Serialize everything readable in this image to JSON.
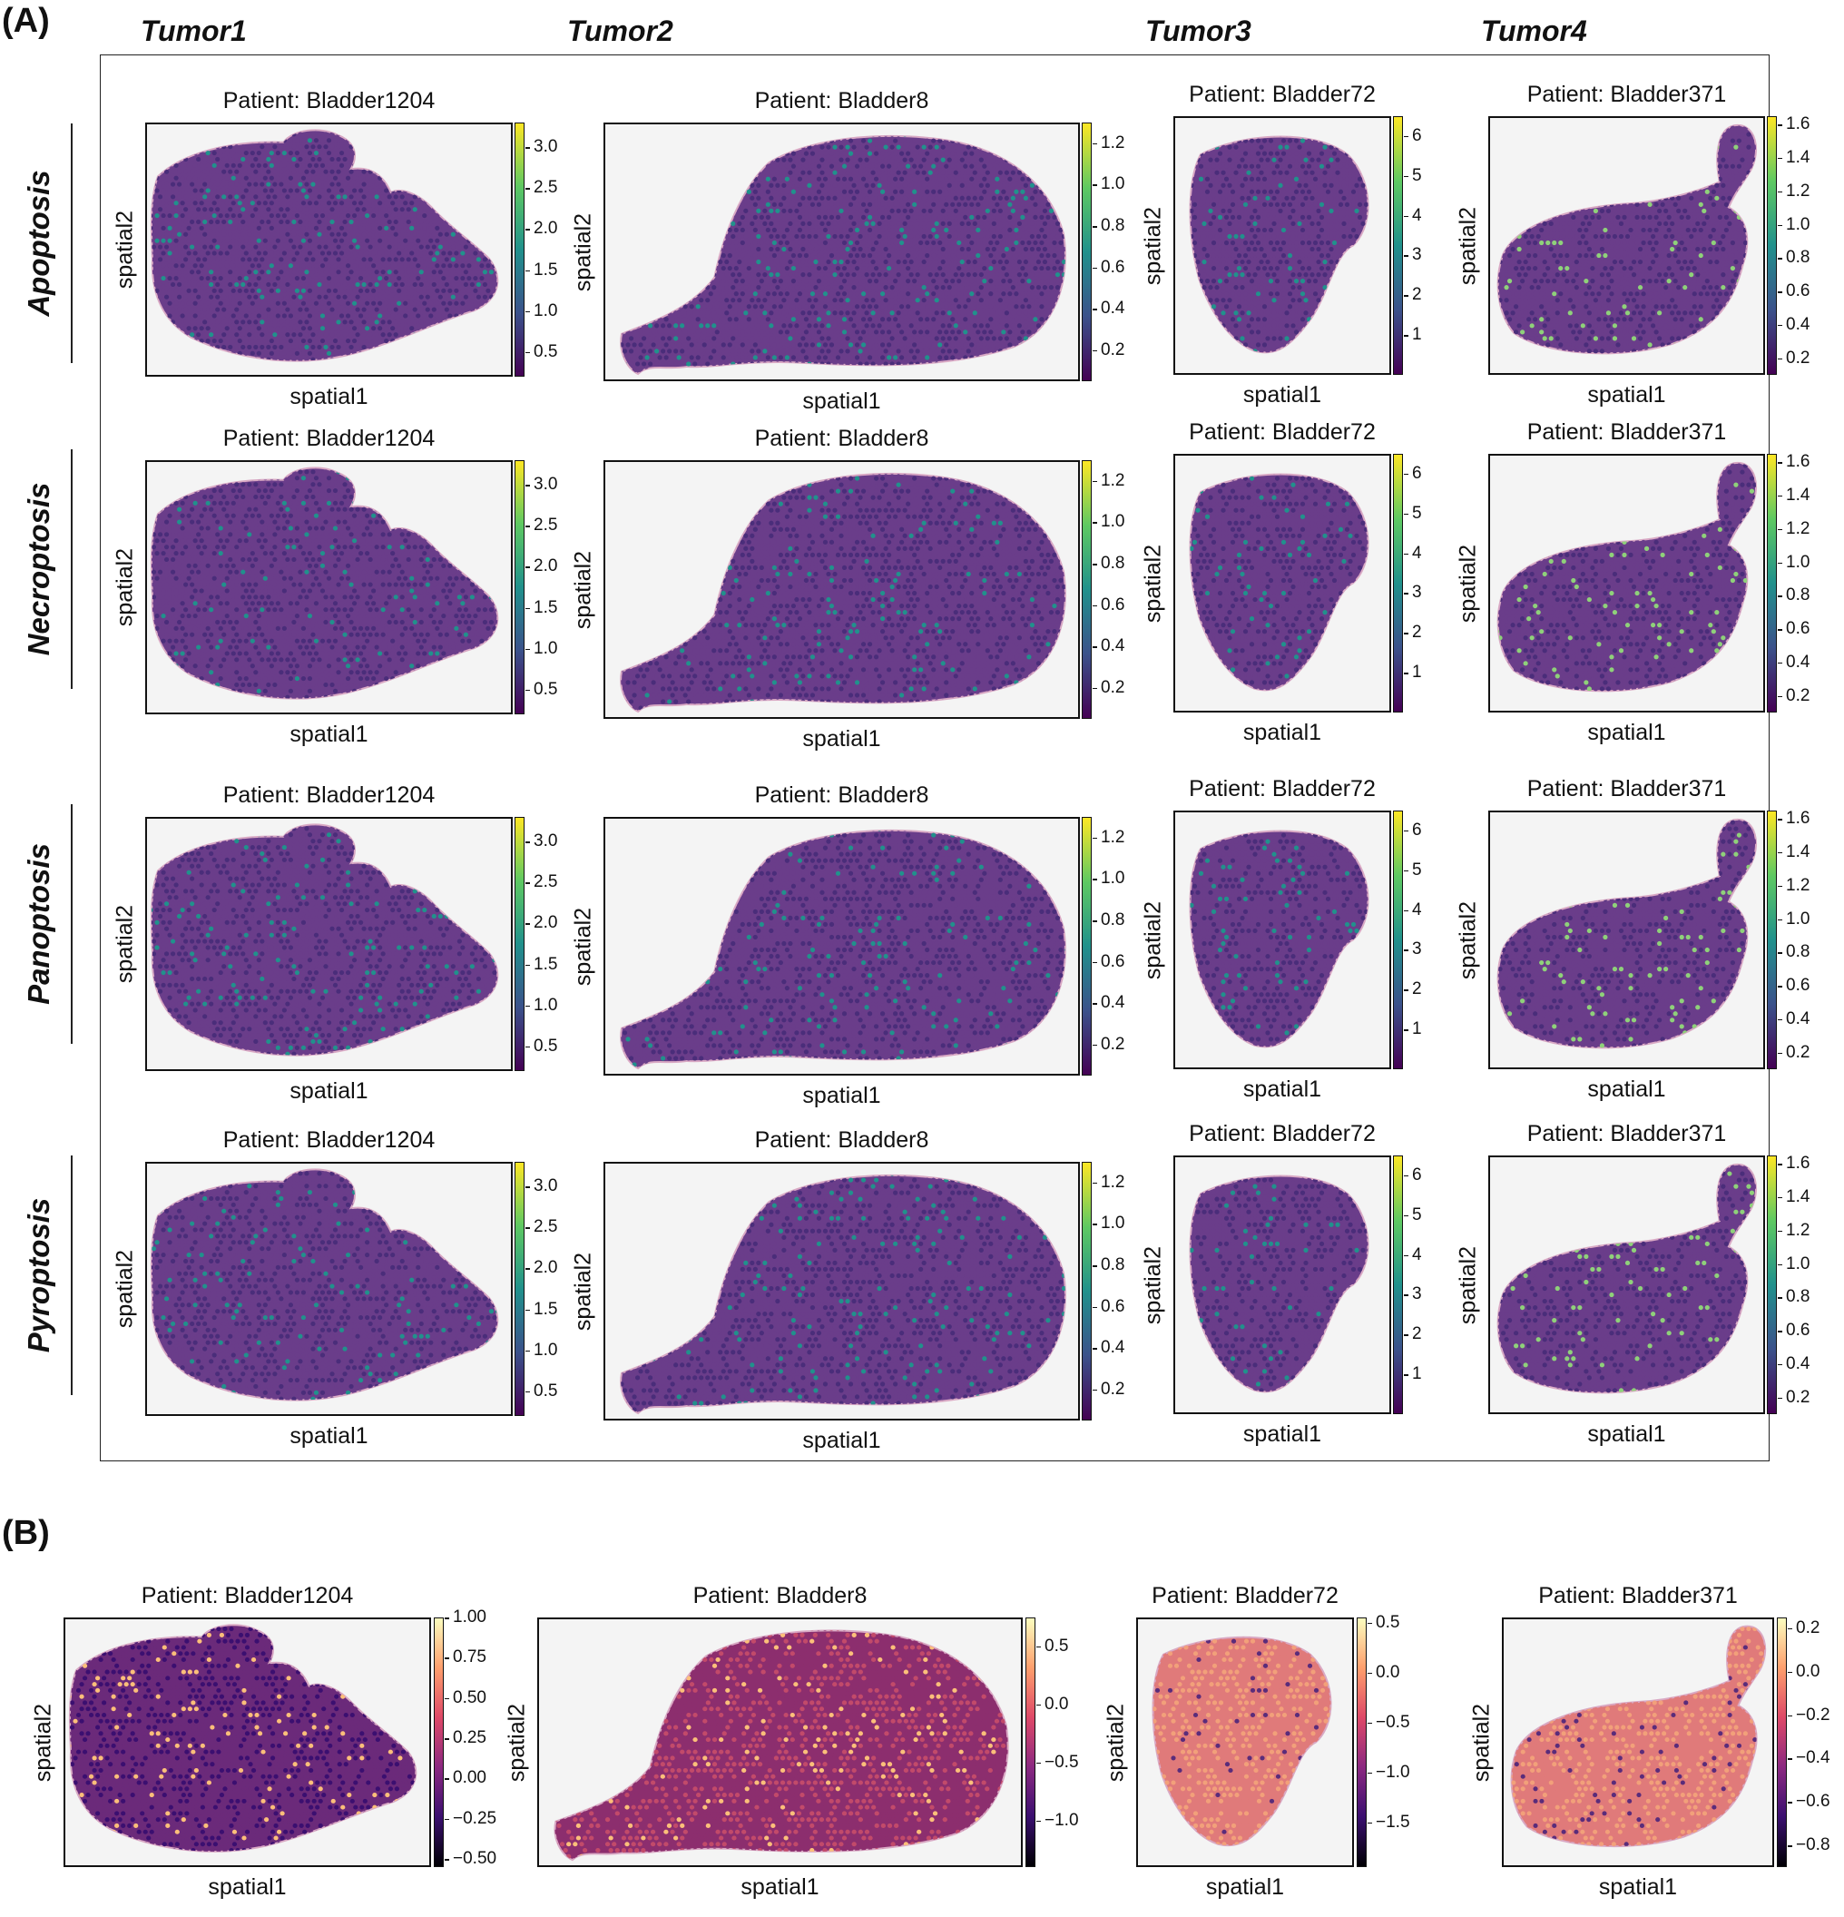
{
  "panels": {
    "a_label": "(A)",
    "b_label": "(B)"
  },
  "columns": [
    {
      "header": "Tumor1",
      "patient": "Patient: Bladder1204"
    },
    {
      "header": "Tumor2",
      "patient": "Patient: Bladder8"
    },
    {
      "header": "Tumor3",
      "patient": "Patient: Bladder72"
    },
    {
      "header": "Tumor4",
      "patient": "Patient: Bladder371"
    }
  ],
  "rows": [
    "Apoptosis",
    "Necroptosis",
    "Panoptosis",
    "Pyroptosis"
  ],
  "axes": {
    "x": "spatial1",
    "y": "spatial2"
  },
  "colormaps": {
    "panel_a": "viridis",
    "panel_b": "magma",
    "accent_tissue": "#6a3d8a",
    "background": "#f4f4f4"
  },
  "chart_data": [
    {
      "type": "heatmap",
      "panel": "A",
      "description_role": "spatial score maps, rows = death pathways, columns = patients",
      "colorbars": {
        "Bladder1204": [
          "3.0",
          "2.5",
          "2.0",
          "1.5",
          "1.0",
          "0.5"
        ],
        "Bladder8": [
          "1.2",
          "1.0",
          "0.8",
          "0.6",
          "0.4",
          "0.2"
        ],
        "Bladder72": [
          "6",
          "5",
          "4",
          "3",
          "2",
          "1"
        ],
        "Bladder371": [
          "1.6",
          "1.4",
          "1.2",
          "1.0",
          "0.8",
          "0.6",
          "0.4",
          "0.2"
        ]
      },
      "ranges": {
        "Bladder1204": [
          0.2,
          3.3
        ],
        "Bladder8": [
          0.05,
          1.3
        ],
        "Bladder72": [
          0,
          6.5
        ],
        "Bladder371": [
          0.1,
          1.65
        ]
      }
    },
    {
      "type": "heatmap",
      "panel": "B",
      "colorbars": {
        "Bladder1204": [
          "1.00",
          "0.75",
          "0.50",
          "0.25",
          "0.00",
          "−0.25",
          "−0.50"
        ],
        "Bladder8": [
          "0.5",
          "0.0",
          "−0.5",
          "−1.0"
        ],
        "Bladder72": [
          "0.5",
          "0.0",
          "−0.5",
          "−1.0",
          "−1.5"
        ],
        "Bladder371": [
          "0.2",
          "0.0",
          "−0.2",
          "−0.4",
          "−0.6",
          "−0.8"
        ]
      },
      "ranges": {
        "Bladder1204": [
          -0.55,
          1.0
        ],
        "Bladder8": [
          -1.4,
          0.75
        ],
        "Bladder72": [
          -1.95,
          0.55
        ],
        "Bladder371": [
          -0.9,
          0.25
        ]
      }
    }
  ]
}
